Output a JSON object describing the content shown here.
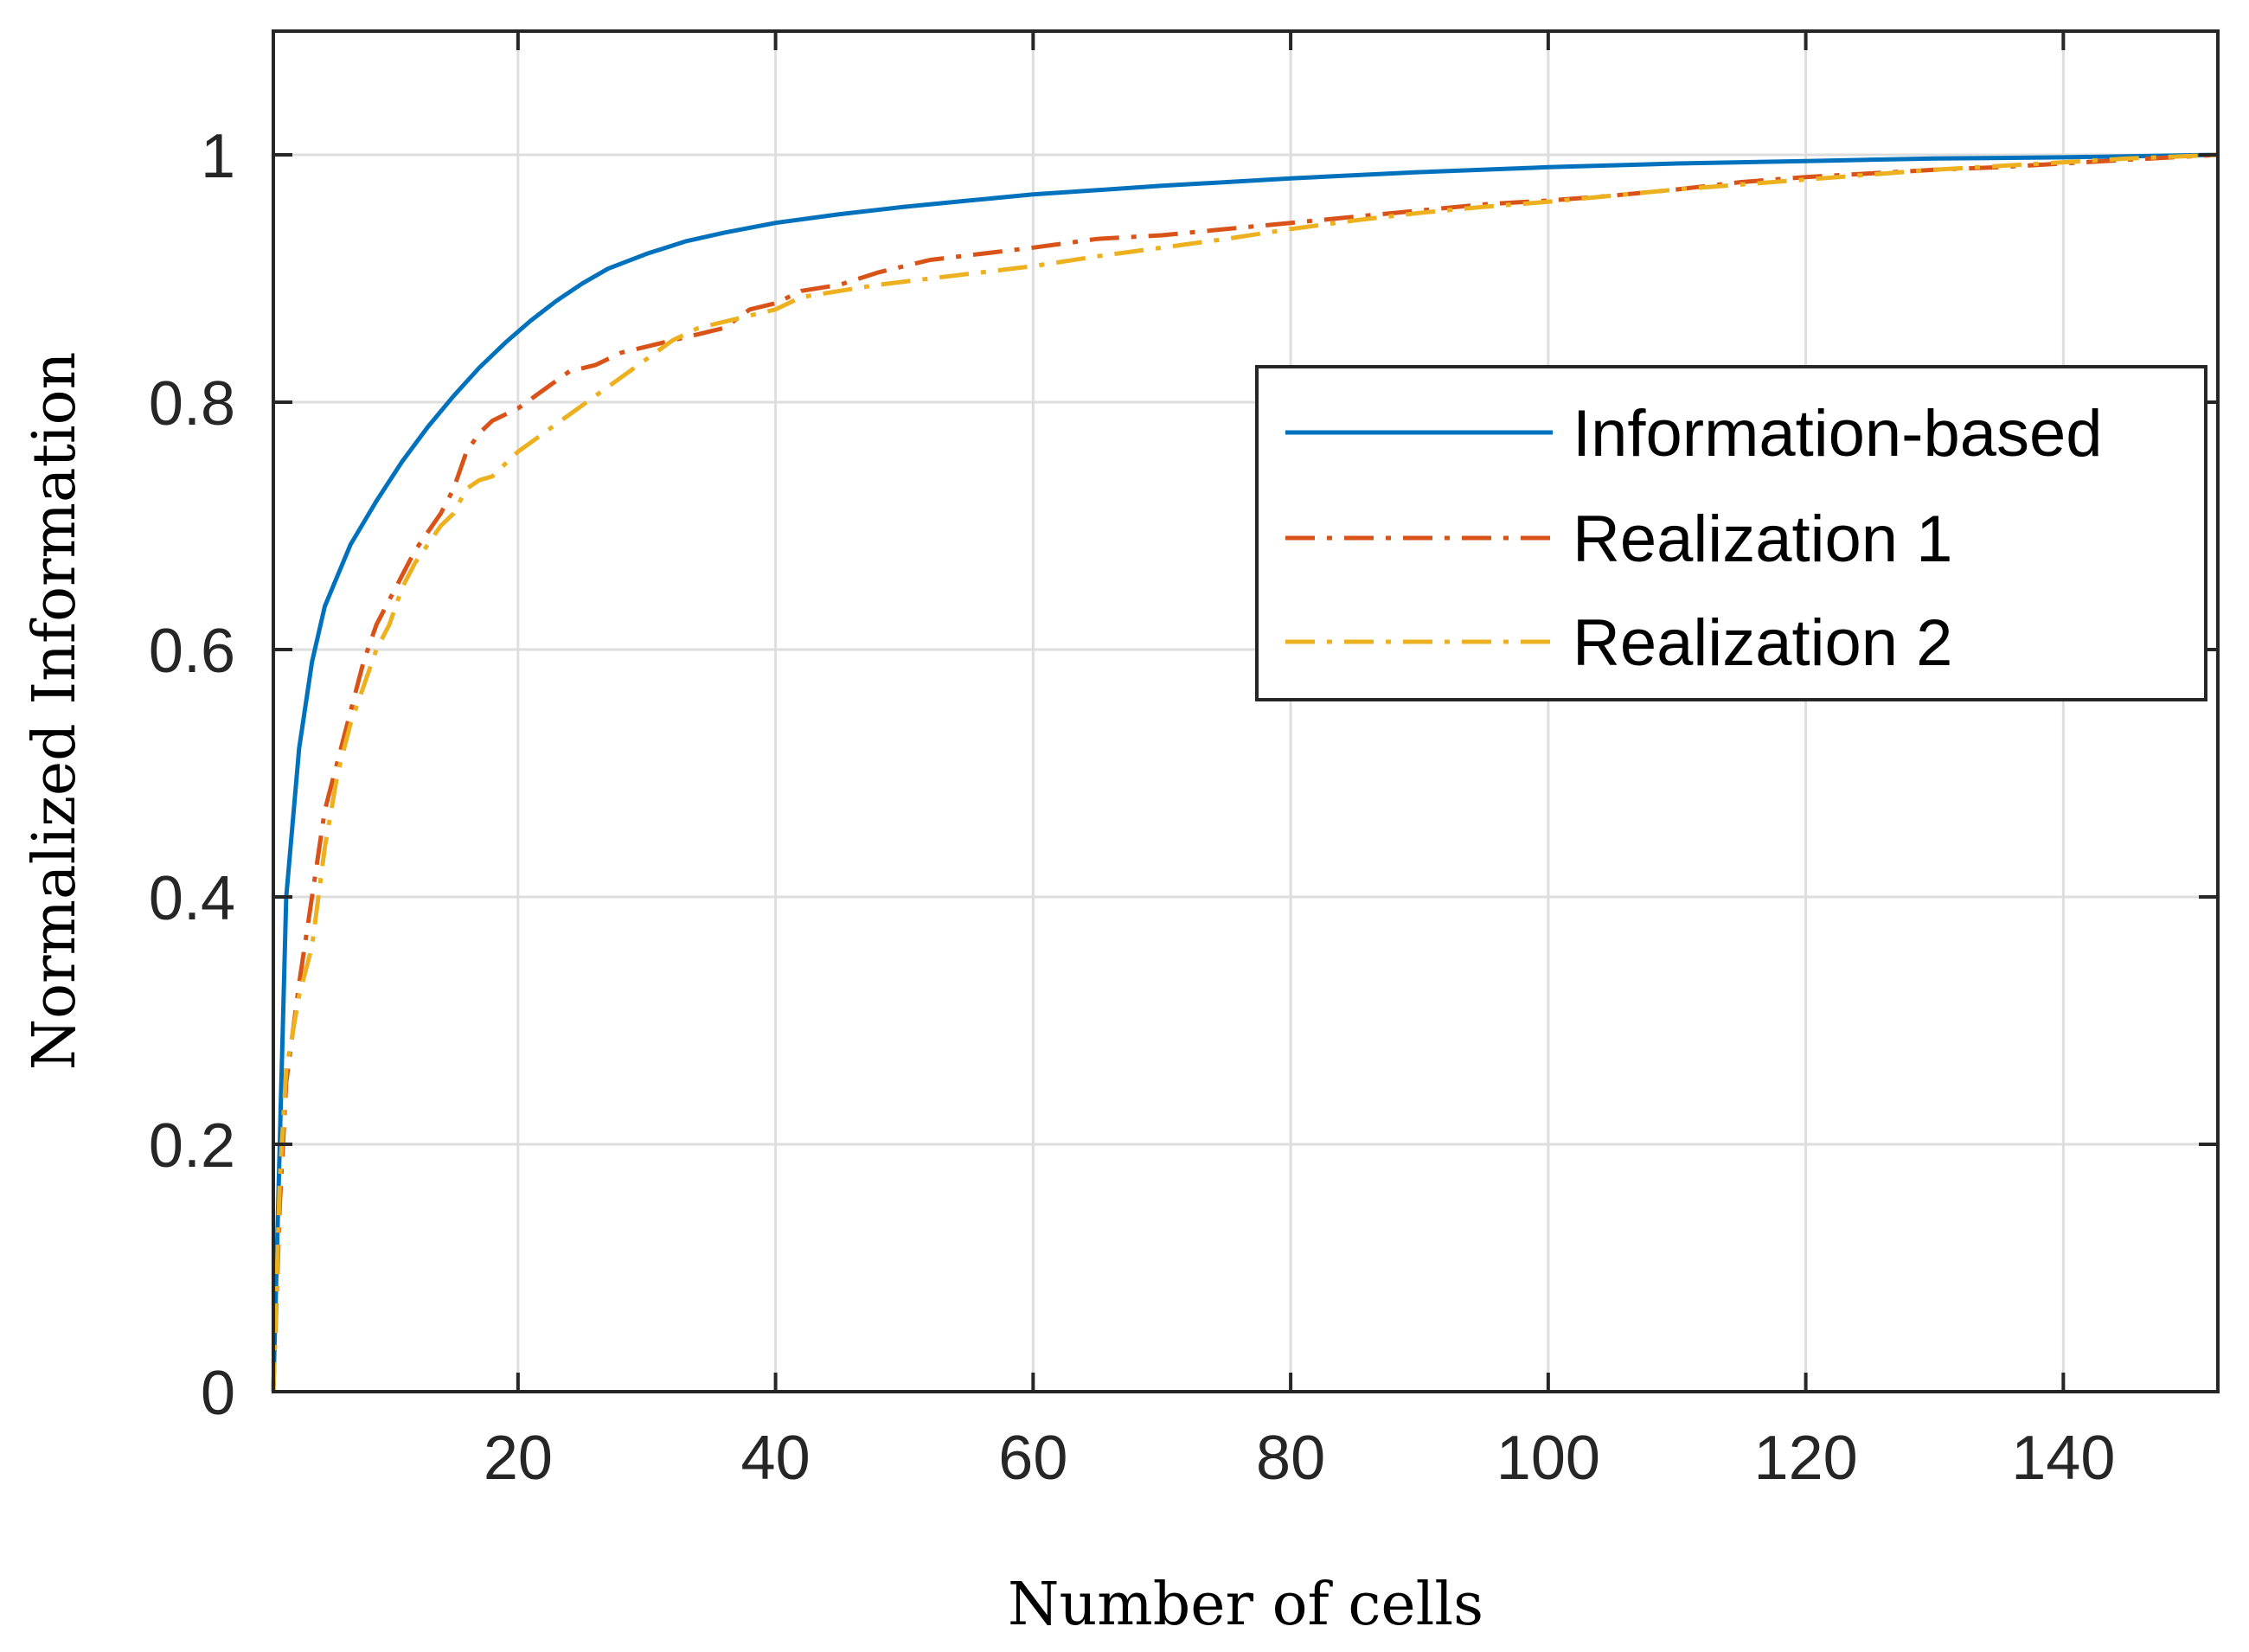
{
  "chart_data": {
    "type": "line",
    "title": "",
    "xlabel": "Number of cells",
    "ylabel": "Normalized Information",
    "xlim": [
      1,
      152
    ],
    "ylim": [
      0,
      1.1
    ],
    "xticks": [
      20,
      40,
      60,
      80,
      100,
      120,
      140
    ],
    "yticks": [
      0,
      0.2,
      0.4,
      0.6,
      0.8,
      1
    ],
    "xtick_labels": [
      "20",
      "40",
      "60",
      "80",
      "100",
      "120",
      "140"
    ],
    "ytick_labels": [
      "0",
      "0.2",
      "0.4",
      "0.6",
      "0.8",
      "1"
    ],
    "grid": true,
    "legend_position": "top-right",
    "series": [
      {
        "name": "Information-based",
        "color": "#0072BD",
        "style": "solid",
        "points": [
          [
            1,
            0.0
          ],
          [
            1.5,
            0.2
          ],
          [
            2,
            0.4
          ],
          [
            3,
            0.52
          ],
          [
            4,
            0.59
          ],
          [
            5,
            0.635
          ],
          [
            7,
            0.685
          ],
          [
            9,
            0.72
          ],
          [
            11,
            0.752
          ],
          [
            13,
            0.78
          ],
          [
            15,
            0.805
          ],
          [
            17,
            0.828
          ],
          [
            19,
            0.848
          ],
          [
            21,
            0.866
          ],
          [
            23,
            0.882
          ],
          [
            25,
            0.896
          ],
          [
            27,
            0.908
          ],
          [
            30,
            0.92
          ],
          [
            33,
            0.93
          ],
          [
            36,
            0.937
          ],
          [
            40,
            0.945
          ],
          [
            45,
            0.952
          ],
          [
            50,
            0.958
          ],
          [
            55,
            0.963
          ],
          [
            60,
            0.968
          ],
          [
            70,
            0.975
          ],
          [
            80,
            0.981
          ],
          [
            90,
            0.986
          ],
          [
            100,
            0.99
          ],
          [
            110,
            0.993
          ],
          [
            120,
            0.995
          ],
          [
            130,
            0.997
          ],
          [
            140,
            0.998
          ],
          [
            152,
            1.0
          ]
        ]
      },
      {
        "name": "Realization 1",
        "color": "#D95319",
        "style": "dashdot",
        "points": [
          [
            1,
            0.0
          ],
          [
            1.5,
            0.15
          ],
          [
            2,
            0.25
          ],
          [
            3,
            0.33
          ],
          [
            4,
            0.4
          ],
          [
            5,
            0.47
          ],
          [
            6,
            0.51
          ],
          [
            7,
            0.55
          ],
          [
            8,
            0.59
          ],
          [
            9,
            0.62
          ],
          [
            10,
            0.64
          ],
          [
            11,
            0.66
          ],
          [
            12,
            0.68
          ],
          [
            13,
            0.695
          ],
          [
            14,
            0.71
          ],
          [
            15,
            0.73
          ],
          [
            16,
            0.76
          ],
          [
            17,
            0.775
          ],
          [
            18,
            0.785
          ],
          [
            20,
            0.795
          ],
          [
            22,
            0.81
          ],
          [
            24,
            0.825
          ],
          [
            26,
            0.83
          ],
          [
            28,
            0.84
          ],
          [
            30,
            0.845
          ],
          [
            32,
            0.85
          ],
          [
            34,
            0.855
          ],
          [
            36,
            0.86
          ],
          [
            38,
            0.875
          ],
          [
            40,
            0.88
          ],
          [
            42,
            0.89
          ],
          [
            45,
            0.895
          ],
          [
            48,
            0.905
          ],
          [
            52,
            0.915
          ],
          [
            56,
            0.92
          ],
          [
            60,
            0.925
          ],
          [
            65,
            0.932
          ],
          [
            70,
            0.935
          ],
          [
            75,
            0.94
          ],
          [
            80,
            0.945
          ],
          [
            85,
            0.95
          ],
          [
            90,
            0.955
          ],
          [
            95,
            0.96
          ],
          [
            100,
            0.963
          ],
          [
            105,
            0.967
          ],
          [
            110,
            0.972
          ],
          [
            115,
            0.978
          ],
          [
            120,
            0.982
          ],
          [
            125,
            0.985
          ],
          [
            130,
            0.988
          ],
          [
            135,
            0.99
          ],
          [
            140,
            0.993
          ],
          [
            145,
            0.996
          ],
          [
            152,
            1.0
          ]
        ]
      },
      {
        "name": "Realization 2",
        "color": "#EDB120",
        "style": "dashdot",
        "points": [
          [
            1,
            0.0
          ],
          [
            1.5,
            0.17
          ],
          [
            2,
            0.26
          ],
          [
            3,
            0.32
          ],
          [
            4,
            0.36
          ],
          [
            5,
            0.44
          ],
          [
            6,
            0.5
          ],
          [
            7,
            0.54
          ],
          [
            8,
            0.57
          ],
          [
            9,
            0.6
          ],
          [
            10,
            0.62
          ],
          [
            11,
            0.65
          ],
          [
            12,
            0.67
          ],
          [
            13,
            0.685
          ],
          [
            14,
            0.7
          ],
          [
            15,
            0.71
          ],
          [
            16,
            0.73
          ],
          [
            17,
            0.737
          ],
          [
            18,
            0.74
          ],
          [
            20,
            0.76
          ],
          [
            22,
            0.775
          ],
          [
            24,
            0.79
          ],
          [
            26,
            0.805
          ],
          [
            28,
            0.82
          ],
          [
            30,
            0.835
          ],
          [
            32,
            0.85
          ],
          [
            34,
            0.86
          ],
          [
            36,
            0.865
          ],
          [
            38,
            0.87
          ],
          [
            40,
            0.875
          ],
          [
            42,
            0.885
          ],
          [
            45,
            0.89
          ],
          [
            48,
            0.895
          ],
          [
            52,
            0.9
          ],
          [
            56,
            0.905
          ],
          [
            60,
            0.91
          ],
          [
            65,
            0.918
          ],
          [
            70,
            0.925
          ],
          [
            75,
            0.932
          ],
          [
            80,
            0.94
          ],
          [
            85,
            0.947
          ],
          [
            90,
            0.953
          ],
          [
            95,
            0.958
          ],
          [
            100,
            0.962
          ],
          [
            105,
            0.967
          ],
          [
            110,
            0.972
          ],
          [
            115,
            0.976
          ],
          [
            120,
            0.98
          ],
          [
            125,
            0.984
          ],
          [
            130,
            0.988
          ],
          [
            135,
            0.991
          ],
          [
            140,
            0.994
          ],
          [
            145,
            0.997
          ],
          [
            152,
            1.0
          ]
        ]
      }
    ]
  }
}
